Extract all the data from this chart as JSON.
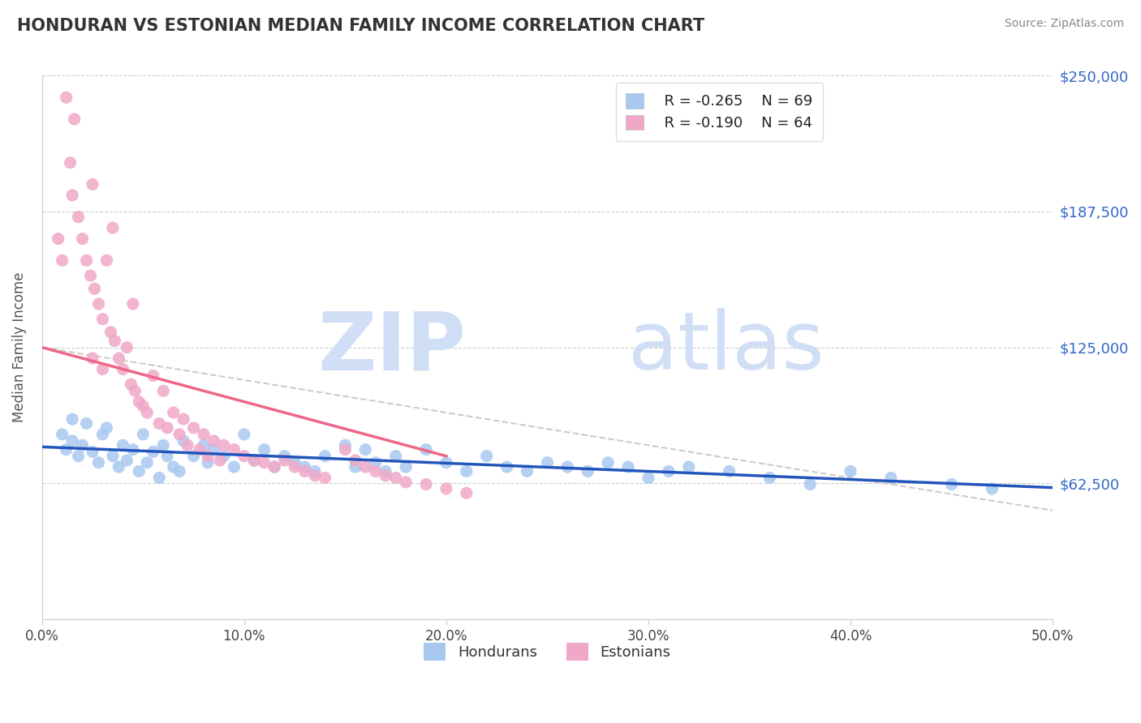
{
  "title": "HONDURAN VS ESTONIAN MEDIAN FAMILY INCOME CORRELATION CHART",
  "source": "Source: ZipAtlas.com",
  "ylabel": "Median Family Income",
  "xlim": [
    0.0,
    0.5
  ],
  "ylim": [
    0,
    250000
  ],
  "yticks": [
    0,
    62500,
    125000,
    187500,
    250000
  ],
  "ytick_labels": [
    "",
    "$62,500",
    "$125,000",
    "$187,500",
    "$250,000"
  ],
  "xticks": [
    0.0,
    0.1,
    0.2,
    0.3,
    0.4,
    0.5
  ],
  "xtick_labels": [
    "0.0%",
    "10.0%",
    "20.0%",
    "30.0%",
    "40.0%",
    "50.0%"
  ],
  "honduran_color": "#a8c8f0",
  "estonian_color": "#f0a8c8",
  "honduran_line_color": "#2255bb",
  "estonian_line_color": "#ee6688",
  "watermark_zip": "ZIP",
  "watermark_atlas": "atlas",
  "watermark_color": "#d0dff5",
  "legend_r1": "R = -0.265",
  "legend_n1": "N = 69",
  "legend_r2": "R = -0.190",
  "legend_n2": "N = 64",
  "honduran_x": [
    0.01,
    0.012,
    0.015,
    0.018,
    0.02,
    0.022,
    0.025,
    0.028,
    0.03,
    0.032,
    0.035,
    0.038,
    0.04,
    0.042,
    0.045,
    0.048,
    0.05,
    0.052,
    0.055,
    0.058,
    0.06,
    0.062,
    0.065,
    0.068,
    0.07,
    0.075,
    0.08,
    0.082,
    0.085,
    0.09,
    0.095,
    0.1,
    0.105,
    0.11,
    0.115,
    0.12,
    0.125,
    0.13,
    0.135,
    0.14,
    0.15,
    0.155,
    0.16,
    0.165,
    0.17,
    0.175,
    0.18,
    0.19,
    0.2,
    0.21,
    0.22,
    0.23,
    0.24,
    0.25,
    0.26,
    0.27,
    0.28,
    0.29,
    0.3,
    0.31,
    0.32,
    0.34,
    0.36,
    0.38,
    0.4,
    0.42,
    0.45,
    0.47,
    0.015
  ],
  "honduran_y": [
    85000,
    78000,
    82000,
    75000,
    80000,
    90000,
    77000,
    72000,
    85000,
    88000,
    75000,
    70000,
    80000,
    73000,
    78000,
    68000,
    85000,
    72000,
    77000,
    65000,
    80000,
    75000,
    70000,
    68000,
    82000,
    75000,
    80000,
    72000,
    78000,
    75000,
    70000,
    85000,
    73000,
    78000,
    70000,
    75000,
    72000,
    70000,
    68000,
    75000,
    80000,
    70000,
    78000,
    72000,
    68000,
    75000,
    70000,
    78000,
    72000,
    68000,
    75000,
    70000,
    68000,
    72000,
    70000,
    68000,
    72000,
    70000,
    65000,
    68000,
    70000,
    68000,
    65000,
    62000,
    68000,
    65000,
    62000,
    60000,
    92000
  ],
  "estonian_x": [
    0.008,
    0.01,
    0.012,
    0.014,
    0.015,
    0.016,
    0.018,
    0.02,
    0.022,
    0.024,
    0.025,
    0.026,
    0.028,
    0.03,
    0.032,
    0.034,
    0.035,
    0.036,
    0.038,
    0.04,
    0.042,
    0.044,
    0.045,
    0.046,
    0.048,
    0.05,
    0.052,
    0.055,
    0.058,
    0.06,
    0.062,
    0.065,
    0.068,
    0.07,
    0.072,
    0.075,
    0.078,
    0.08,
    0.082,
    0.085,
    0.088,
    0.09,
    0.095,
    0.1,
    0.105,
    0.11,
    0.115,
    0.12,
    0.125,
    0.13,
    0.135,
    0.14,
    0.15,
    0.155,
    0.16,
    0.165,
    0.17,
    0.175,
    0.18,
    0.19,
    0.2,
    0.21,
    0.025,
    0.03
  ],
  "estonian_y": [
    175000,
    165000,
    240000,
    210000,
    195000,
    230000,
    185000,
    175000,
    165000,
    158000,
    200000,
    152000,
    145000,
    138000,
    165000,
    132000,
    180000,
    128000,
    120000,
    115000,
    125000,
    108000,
    145000,
    105000,
    100000,
    98000,
    95000,
    112000,
    90000,
    105000,
    88000,
    95000,
    85000,
    92000,
    80000,
    88000,
    78000,
    85000,
    75000,
    82000,
    73000,
    80000,
    78000,
    75000,
    73000,
    72000,
    70000,
    73000,
    70000,
    68000,
    66000,
    65000,
    78000,
    73000,
    70000,
    68000,
    66000,
    65000,
    63000,
    62000,
    60000,
    58000,
    120000,
    115000
  ]
}
